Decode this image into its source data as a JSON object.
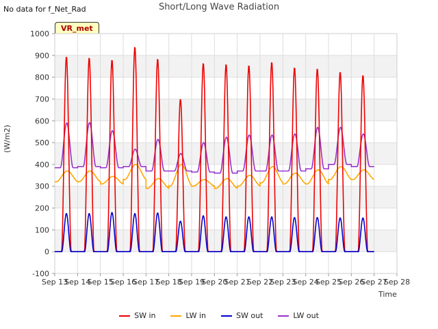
{
  "chart_data": {
    "type": "line",
    "title": "Short/Long Wave Radiation",
    "note": "No data for f_Net_Rad",
    "site_label": "VR_met",
    "xlabel": "Time",
    "ylabel": "(W/m2)",
    "ylim": [
      -100,
      1000
    ],
    "yticks": [
      -100,
      0,
      100,
      200,
      300,
      400,
      500,
      600,
      700,
      800,
      900,
      1000
    ],
    "xlim": [
      13,
      28
    ],
    "xticks": [
      {
        "day": 13,
        "label": "Sep 13"
      },
      {
        "day": 14,
        "label": "Sep 14"
      },
      {
        "day": 15,
        "label": "Sep 15"
      },
      {
        "day": 16,
        "label": "Sep 16"
      },
      {
        "day": 17,
        "label": "Sep 17"
      },
      {
        "day": 18,
        "label": "Sep 18"
      },
      {
        "day": 19,
        "label": "Sep 19"
      },
      {
        "day": 20,
        "label": "Sep 20"
      },
      {
        "day": 21,
        "label": "Sep 21"
      },
      {
        "day": 22,
        "label": "Sep 22"
      },
      {
        "day": 23,
        "label": "Sep 23"
      },
      {
        "day": 24,
        "label": "Sep 24"
      },
      {
        "day": 25,
        "label": "Sep 25"
      },
      {
        "day": 26,
        "label": "Sep 26"
      },
      {
        "day": 27,
        "label": "Sep 27"
      },
      {
        "day": 28,
        "label": "Sep 28"
      }
    ],
    "grid": true,
    "legend_position": "bottom",
    "days": [
      13,
      14,
      15,
      16,
      17,
      18,
      19,
      20,
      21,
      22,
      23,
      24,
      25,
      26
    ],
    "series": [
      {
        "name": "SW in",
        "color": "#ee0000",
        "daily_peak": [
          895,
          890,
          880,
          940,
          885,
          700,
          865,
          860,
          855,
          870,
          845,
          840,
          825,
          810
        ],
        "night_value": 0
      },
      {
        "name": "LW in",
        "color": "#ffa500",
        "daily_max": [
          370,
          370,
          345,
          400,
          335,
          400,
          330,
          335,
          350,
          390,
          360,
          375,
          390,
          375
        ],
        "daily_min": [
          320,
          320,
          310,
          330,
          290,
          300,
          300,
          290,
          300,
          315,
          310,
          310,
          330,
          330
        ]
      },
      {
        "name": "SW out",
        "color": "#0000cc",
        "daily_peak": [
          175,
          175,
          180,
          175,
          178,
          140,
          165,
          160,
          160,
          160,
          157,
          157,
          155,
          155
        ],
        "night_value": 0
      },
      {
        "name": "LW out",
        "color": "#9932cc",
        "daily_peak": [
          590,
          592,
          555,
          470,
          515,
          450,
          500,
          525,
          535,
          535,
          540,
          570,
          570,
          540
        ],
        "night_value": [
          385,
          390,
          385,
          390,
          370,
          370,
          365,
          360,
          370,
          370,
          370,
          380,
          400,
          390
        ]
      }
    ]
  }
}
